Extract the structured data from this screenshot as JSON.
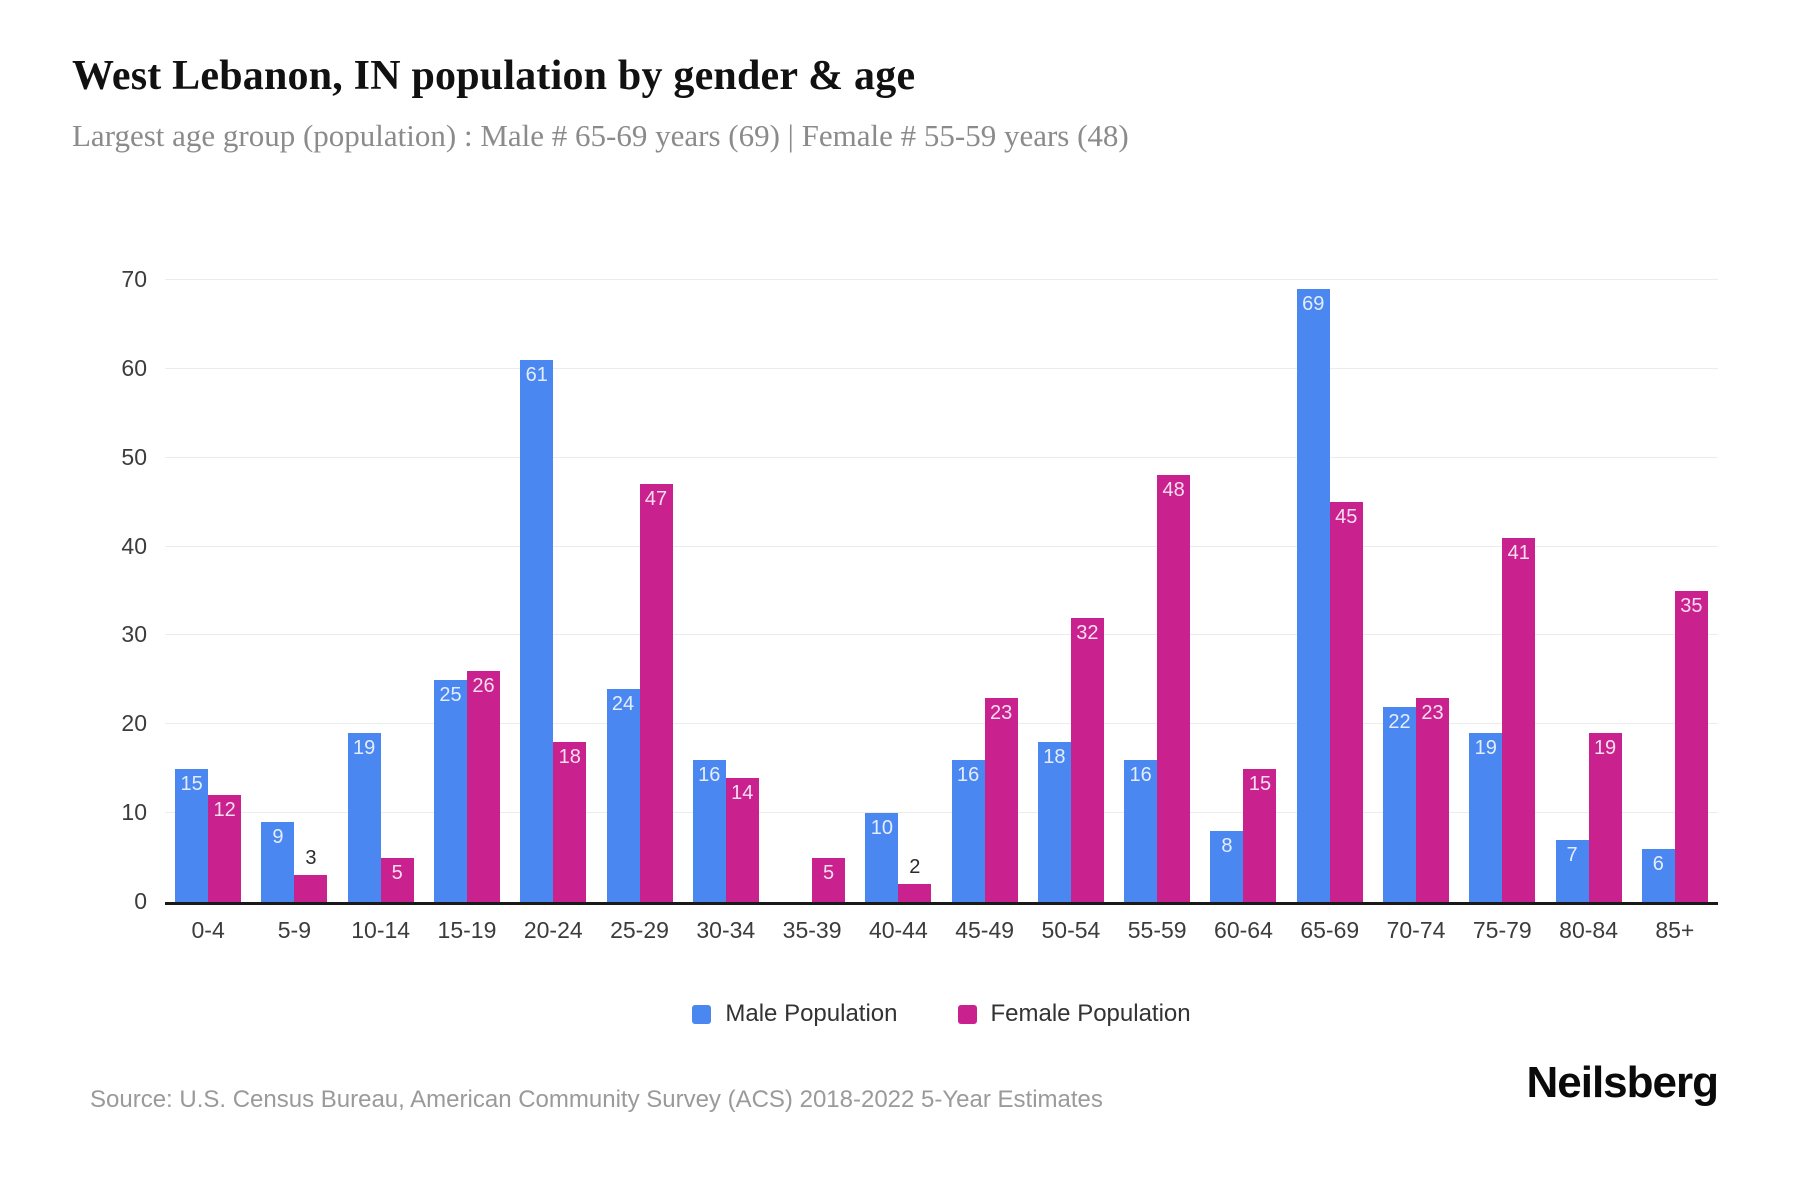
{
  "title": "West Lebanon, IN population by gender & age",
  "subtitle": "Largest age group (population) : Male # 65-69 years (69) | Female # 55-59 years (48)",
  "source": "Source: U.S. Census Bureau, American Community Survey (ACS) 2018-2022 5-Year Estimates",
  "brand": "Neilsberg",
  "colors": {
    "male": "#4b87f0",
    "female": "#c9218e",
    "grid": "#ececec",
    "axis_line": "#1a1a1a",
    "tick_label": "#3c3c3c",
    "bar_label_inside": "rgba(255,255,255,0.85)",
    "bar_label_outside": "#2b2b2b",
    "legend_text": "#333333",
    "subtitle_text": "#8b8b8b",
    "source_text": "#9a9a9a"
  },
  "chart_data": {
    "type": "bar",
    "categories": [
      "0-4",
      "5-9",
      "10-14",
      "15-19",
      "20-24",
      "25-29",
      "30-34",
      "35-39",
      "40-44",
      "45-49",
      "50-54",
      "55-59",
      "60-64",
      "65-69",
      "70-74",
      "75-79",
      "80-84",
      "85+"
    ],
    "series": [
      {
        "name": "Male Population",
        "values": [
          15,
          9,
          19,
          25,
          61,
          24,
          16,
          0,
          10,
          16,
          18,
          16,
          8,
          69,
          22,
          19,
          7,
          6
        ]
      },
      {
        "name": "Female Population",
        "values": [
          12,
          3,
          5,
          26,
          18,
          47,
          14,
          5,
          2,
          23,
          32,
          48,
          15,
          45,
          23,
          41,
          19,
          35
        ]
      }
    ],
    "xlabel": "",
    "ylabel": "",
    "ylim": [
      0,
      70
    ],
    "yticks": [
      0,
      10,
      20,
      30,
      40,
      50,
      60,
      70
    ],
    "grid": true,
    "legend_position": "bottom"
  }
}
